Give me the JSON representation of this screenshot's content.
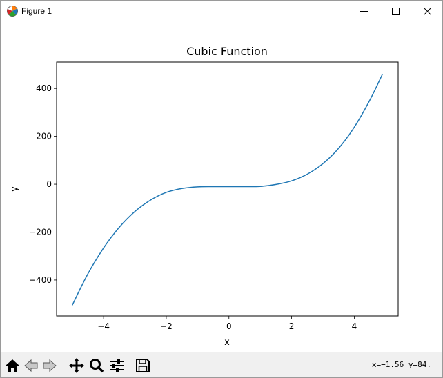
{
  "window": {
    "title": "Figure 1",
    "icons": {
      "app": "matplotlib-icon",
      "minimize": "minimize-icon",
      "maximize": "maximize-icon",
      "close": "close-icon"
    }
  },
  "toolbar": {
    "buttons": [
      {
        "name": "home-icon",
        "label": "Home"
      },
      {
        "name": "back-icon",
        "label": "Back"
      },
      {
        "name": "forward-icon",
        "label": "Forward"
      },
      {
        "name": "pan-icon",
        "label": "Pan"
      },
      {
        "name": "zoom-icon",
        "label": "Zoom"
      },
      {
        "name": "configure-subplots-icon",
        "label": "Subplots"
      },
      {
        "name": "save-icon",
        "label": "Save"
      }
    ],
    "coords": "x=−1.56 y=84."
  },
  "chart_data": {
    "type": "line",
    "title": "Cubic Function",
    "xlabel": "x",
    "ylabel": "y",
    "xlim": [
      -5.5,
      5.4
    ],
    "ylim": [
      -550,
      510
    ],
    "xticks": [
      -4,
      -2,
      0,
      2,
      4
    ],
    "yticks": [
      -400,
      -200,
      0,
      200,
      400
    ],
    "tick_labels_x": [
      "−4",
      "−2",
      "0",
      "2",
      "4"
    ],
    "tick_labels_y": [
      "−400",
      "−200",
      "0",
      "200",
      "400"
    ],
    "grid": false,
    "color": "#1f77b4",
    "series": [
      {
        "x": [
          -5.0,
          -4.5,
          -4.0,
          -3.5,
          -3.0,
          -2.5,
          -2.0,
          -1.5,
          -1.0,
          -0.5,
          0.0,
          0.5,
          1.0,
          1.5,
          2.0,
          2.5,
          3.0,
          3.5,
          4.0,
          4.5,
          4.9
        ],
        "y": [
          -505,
          -374,
          -266,
          -180,
          -114,
          -66,
          -34,
          -18,
          -11,
          -10,
          -10,
          -10,
          -9,
          -1,
          14,
          42,
          86,
          150,
          238,
          352,
          460
        ]
      }
    ]
  }
}
